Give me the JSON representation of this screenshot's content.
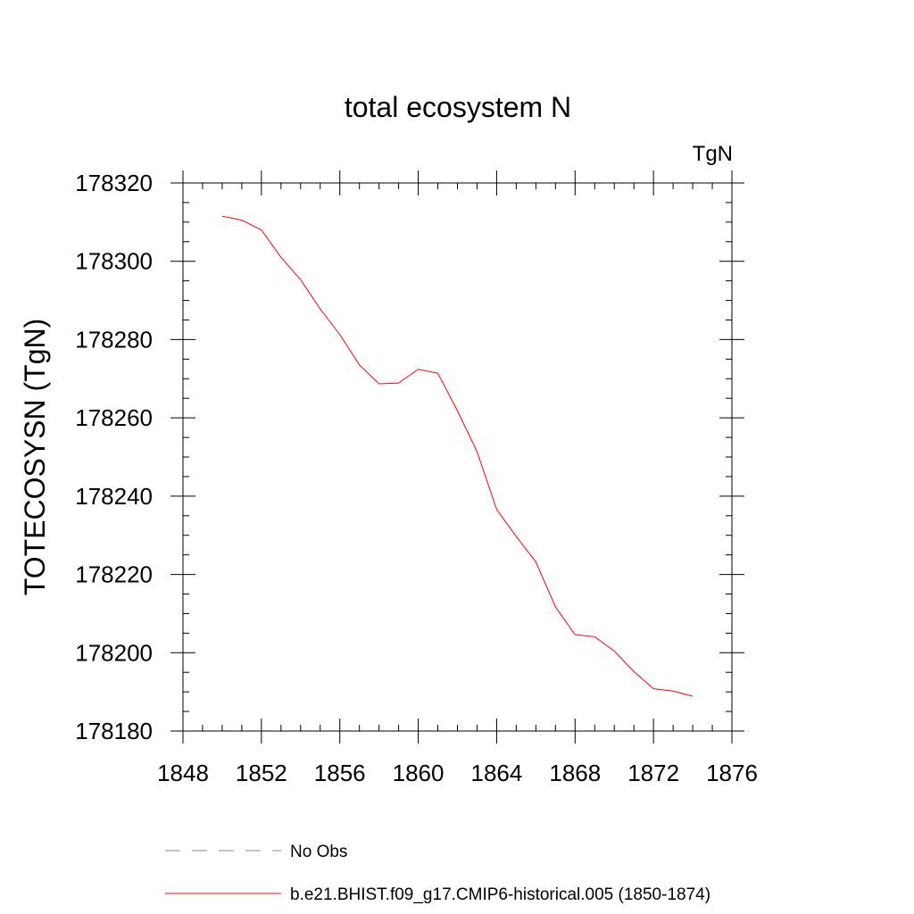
{
  "chart_data": {
    "type": "line",
    "title": "total ecosystem N",
    "units_label": "TgN",
    "xlabel": "",
    "ylabel": "TOTECOSYSN  (TgN)",
    "xlim": [
      1848,
      1876
    ],
    "ylim": [
      178180,
      178320
    ],
    "x_ticks": [
      1848,
      1852,
      1856,
      1860,
      1864,
      1868,
      1872,
      1876
    ],
    "y_ticks": [
      178180,
      178200,
      178220,
      178240,
      178260,
      178280,
      178300,
      178320
    ],
    "x_minor_step": 1,
    "y_minor_step": 5,
    "grid": false,
    "legend_position": "bottom",
    "series": [
      {
        "name": "b.e21.BHIST.f09_g17.CMIP6-historical.005 (1850-1874)",
        "color": "#ff0000",
        "dash": "solid",
        "x": [
          1850,
          1851,
          1852,
          1853,
          1854,
          1855,
          1856,
          1857,
          1858,
          1859,
          1860,
          1861,
          1862,
          1863,
          1864,
          1865,
          1866,
          1867,
          1868,
          1869,
          1870,
          1871,
          1872,
          1873,
          1874
        ],
        "values": [
          178311.5,
          178310.5,
          178308,
          178301,
          178295.3,
          178287.8,
          178281.3,
          178273.5,
          178268.7,
          178268.9,
          178272.4,
          178271.4,
          178261.8,
          178251.4,
          178236.6,
          178229.7,
          178223.2,
          178211.7,
          178204.6,
          178204.1,
          178200.4,
          178195.2,
          178190.8,
          178190.2,
          178188.9
        ]
      }
    ],
    "legend": [
      {
        "name": "No Obs",
        "color": "#8080c0",
        "dash": "dashed"
      },
      {
        "name": "b.e21.BHIST.f09_g17.CMIP6-historical.005 (1850-1874)",
        "color": "#ff0000",
        "dash": "solid"
      }
    ]
  }
}
